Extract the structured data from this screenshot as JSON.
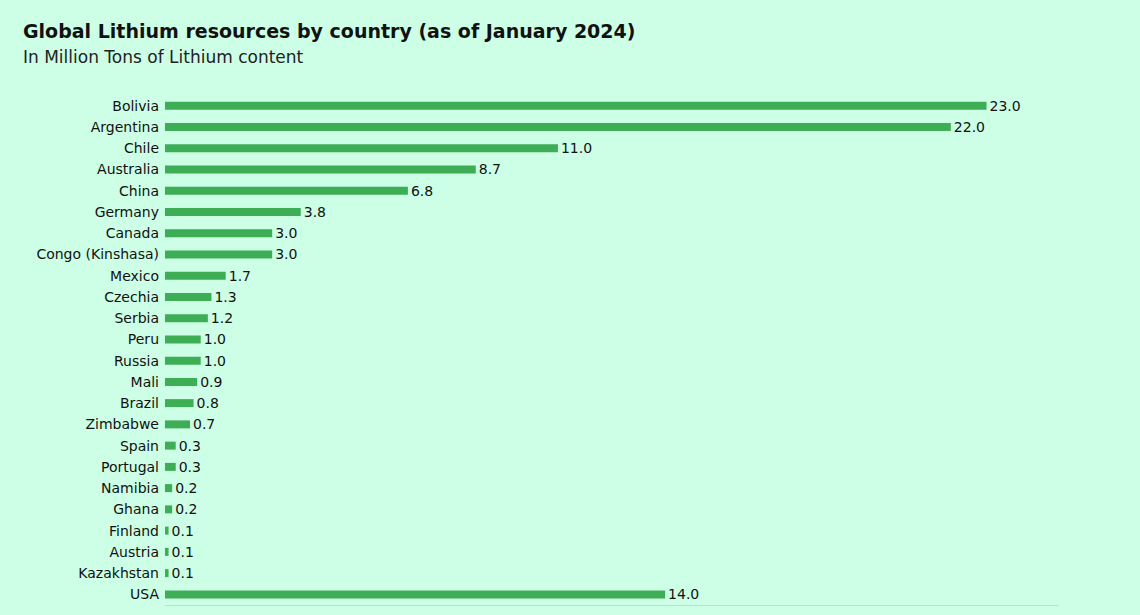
{
  "chart_data": {
    "type": "bar",
    "orientation": "horizontal",
    "title": "Global Lithium resources by country (as of January 2024)",
    "subtitle": "In Million Tons of Lithium content",
    "categories": [
      "Bolivia",
      "Argentina",
      "Chile",
      "Australia",
      "China",
      "Germany",
      "Canada",
      "Congo (Kinshasa)",
      "Mexico",
      "Czechia",
      "Serbia",
      "Peru",
      "Russia",
      "Mali",
      "Brazil",
      "Zimbabwe",
      "Spain",
      "Portugal",
      "Namibia",
      "Ghana",
      "Finland",
      "Austria",
      "Kazakhstan",
      "USA"
    ],
    "values": [
      23.0,
      22.0,
      11.0,
      8.7,
      6.8,
      3.8,
      3.0,
      3.0,
      1.7,
      1.3,
      1.2,
      1.0,
      1.0,
      0.9,
      0.8,
      0.7,
      0.3,
      0.3,
      0.2,
      0.2,
      0.1,
      0.1,
      0.1,
      14.0
    ],
    "value_labels": [
      "23.0",
      "22.0",
      "11.0",
      "8.7",
      "6.8",
      "3.8",
      "3.0",
      "3.0",
      "1.7",
      "1.3",
      "1.2",
      "1.0",
      "1.0",
      "0.9",
      "0.8",
      "0.7",
      "0.3",
      "0.3",
      "0.2",
      "0.2",
      "0.1",
      "0.1",
      "0.1",
      "14.0"
    ],
    "color": "#3dae56",
    "xlim": [
      0,
      25
    ],
    "grid": false,
    "data_labels": true,
    "tick_labels": "y"
  }
}
